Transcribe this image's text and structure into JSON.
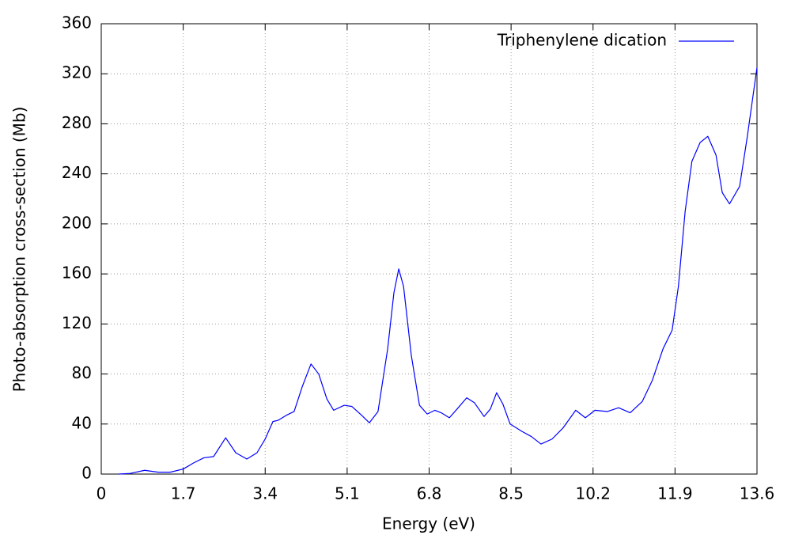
{
  "chart_data": {
    "type": "line",
    "x_label": "Energy (eV)",
    "y_label": "Photo-absorption cross-section (Mb)",
    "xlim": [
      0,
      13.6
    ],
    "xticks": [
      0,
      1.7,
      3.4,
      5.1,
      6.8,
      8.5,
      10.2,
      11.9,
      13.6
    ],
    "ylim": [
      0,
      360
    ],
    "yticks": [
      0,
      40,
      80,
      120,
      160,
      200,
      240,
      280,
      320,
      360
    ],
    "grid": true,
    "legend_position": "top-right",
    "series": [
      {
        "name": "Triphenylene dication",
        "color": "#0000ff",
        "x": [
          0.36,
          0.6,
          0.9,
          1.18,
          1.43,
          1.7,
          1.92,
          2.13,
          2.33,
          2.58,
          2.79,
          3.02,
          3.23,
          3.4,
          3.56,
          3.67,
          3.84,
          4.0,
          4.17,
          4.35,
          4.51,
          4.68,
          4.82,
          5.04,
          5.2,
          5.4,
          5.56,
          5.74,
          5.94,
          6.07,
          6.17,
          6.27,
          6.43,
          6.6,
          6.76,
          6.92,
          7.05,
          7.22,
          7.38,
          7.58,
          7.74,
          7.94,
          8.07,
          8.2,
          8.33,
          8.48,
          8.73,
          8.92,
          9.12,
          9.35,
          9.58,
          9.84,
          10.04,
          10.24,
          10.5,
          10.73,
          10.97,
          11.22,
          11.43,
          11.65,
          11.84,
          11.97,
          12.11,
          12.25,
          12.42,
          12.58,
          12.75,
          12.88,
          13.03,
          13.24,
          13.4,
          13.6
        ],
        "values": [
          0,
          0.5,
          3,
          1.5,
          1.5,
          4,
          9,
          13,
          14,
          29,
          17,
          12,
          17,
          28,
          42,
          43,
          47,
          50,
          70,
          88,
          80,
          60,
          51,
          55,
          54,
          47,
          41,
          50,
          100,
          145,
          164,
          150,
          95,
          55,
          48,
          51,
          49,
          45,
          52,
          61,
          57,
          46,
          52,
          65,
          56,
          40,
          34,
          30,
          24,
          28,
          37,
          51,
          45,
          51,
          50,
          53,
          49,
          58,
          75,
          100,
          115,
          150,
          210,
          250,
          265,
          270,
          255,
          225,
          216,
          230,
          270,
          325
        ]
      }
    ]
  }
}
